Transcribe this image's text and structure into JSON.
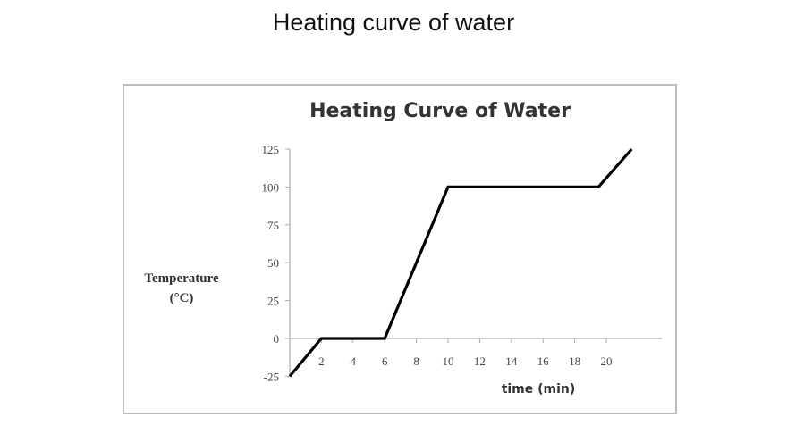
{
  "slide": {
    "title": "Heating curve of water"
  },
  "chart_data": {
    "type": "line",
    "title": "Heating Curve of Water",
    "xlabel": "time (min)",
    "ylabel": "Temperature",
    "ylabel_unit": "(°C)",
    "xlim": [
      0,
      23.5
    ],
    "ylim": [
      -25,
      125
    ],
    "xticks": [
      2,
      4,
      6,
      8,
      10,
      12,
      14,
      16,
      18,
      20
    ],
    "yticks": [
      -25,
      0,
      25,
      50,
      75,
      100,
      125
    ],
    "grid": false,
    "series": [
      {
        "x": [
          0,
          2,
          6,
          10,
          19.5,
          21.6
        ],
        "y": [
          -25,
          0,
          0,
          100,
          100,
          125
        ],
        "color": "#000000"
      }
    ]
  }
}
